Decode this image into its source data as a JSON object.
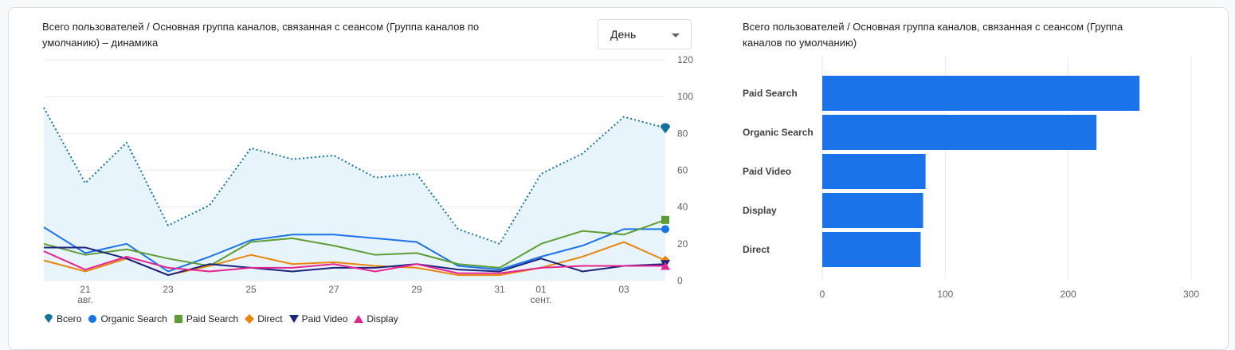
{
  "line_panel": {
    "title_line1": "Всего пользователей / Основная группа каналов, связанная с сеансом (Группа каналов по",
    "title_line2": "умолчанию) – динамика",
    "dropdown_value": "День"
  },
  "bar_panel": {
    "title_line1": "Всего пользователей / Основная группа каналов, связанная с сеансом (Группа",
    "title_line2": "каналов по умолчанию)"
  },
  "colors": {
    "total": "#1a73e8",
    "total_line": "#12739e",
    "organic": "#1a73e8",
    "paid_search": "#5c9e31",
    "direct": "#e8850c",
    "paid_video": "#1a237e",
    "display": "#e52592",
    "bar": "#1a73e8"
  },
  "chart_data": [
    {
      "type": "line",
      "x_tick_labels": [
        {
          "day": "21",
          "month": "авг."
        },
        {
          "day": "23",
          "month": ""
        },
        {
          "day": "25",
          "month": ""
        },
        {
          "day": "27",
          "month": ""
        },
        {
          "day": "29",
          "month": ""
        },
        {
          "day": "31",
          "month": ""
        },
        {
          "day": "01",
          "month": "сент."
        },
        {
          "day": "03",
          "month": ""
        }
      ],
      "x_tick_index": [
        1,
        3,
        5,
        7,
        9,
        11,
        12,
        14
      ],
      "y_ticks": [
        "0",
        "20",
        "40",
        "60",
        "80",
        "100",
        "120"
      ],
      "ylim": [
        0,
        120
      ],
      "n_points": 16,
      "series": [
        {
          "name": "Всего",
          "key": "total",
          "values": [
            94,
            53,
            75,
            30,
            41,
            72,
            66,
            68,
            56,
            58,
            28,
            20,
            58,
            69,
            89,
            83
          ]
        },
        {
          "name": "Organic Search",
          "key": "organic",
          "values": [
            29,
            15,
            20,
            5,
            13,
            22,
            25,
            25,
            23,
            21,
            8,
            6,
            13,
            19,
            28,
            28
          ]
        },
        {
          "name": "Paid Search",
          "key": "paid_search",
          "values": [
            20,
            14,
            17,
            12,
            8,
            21,
            23,
            19,
            14,
            15,
            9,
            7,
            20,
            27,
            25,
            33
          ]
        },
        {
          "name": "Direct",
          "key": "direct",
          "values": [
            11,
            5,
            12,
            3,
            8,
            14,
            9,
            10,
            8,
            7,
            3,
            3,
            7,
            13,
            21,
            11
          ]
        },
        {
          "name": "Paid Video",
          "key": "paid_video",
          "values": [
            18,
            18,
            12,
            3,
            9,
            7,
            5,
            7,
            7,
            9,
            6,
            5,
            12,
            5,
            8,
            9
          ]
        },
        {
          "name": "Display",
          "key": "display",
          "values": [
            16,
            6,
            13,
            7,
            5,
            7,
            7,
            9,
            5,
            9,
            4,
            4,
            7,
            8,
            8,
            8
          ]
        }
      ]
    },
    {
      "type": "bar",
      "orientation": "horizontal",
      "categories": [
        "Paid Search",
        "Organic Search",
        "Paid Video",
        "Display",
        "Direct"
      ],
      "values": [
        258,
        223,
        84,
        82,
        80
      ],
      "x_ticks": [
        "0",
        "100",
        "200",
        "300"
      ],
      "xlim": [
        0,
        300
      ]
    }
  ]
}
